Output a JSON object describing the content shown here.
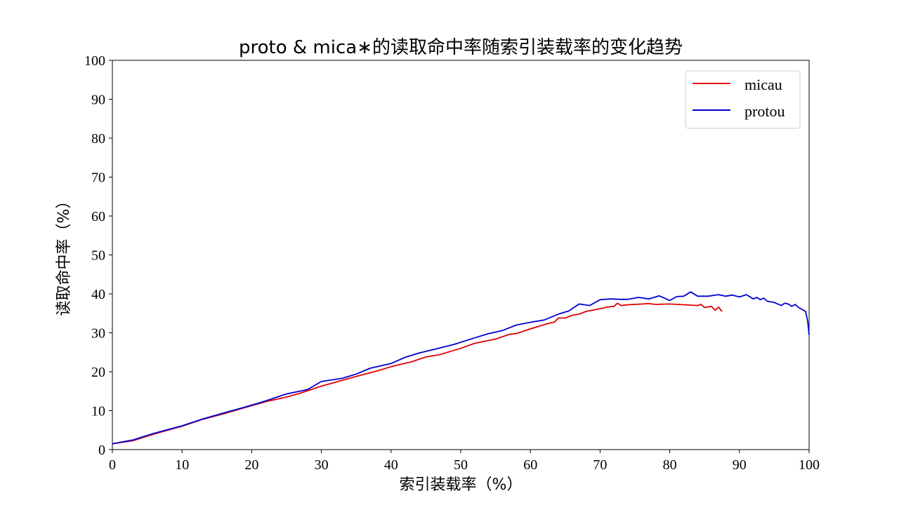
{
  "chart_data": {
    "type": "line",
    "title": "proto & mica∗的读取命中率随索引装载率的变化趋势",
    "xlabel": "索引装载率（%）",
    "ylabel": "读取命中率（%）",
    "xlim": [
      0,
      100
    ],
    "ylim": [
      0,
      100
    ],
    "xticks": [
      "0",
      "10",
      "20",
      "30",
      "40",
      "50",
      "60",
      "70",
      "80",
      "90",
      "100"
    ],
    "yticks": [
      "0",
      "10",
      "20",
      "30",
      "40",
      "50",
      "60",
      "70",
      "80",
      "90",
      "100"
    ],
    "grid": false,
    "legend_position": "top-right",
    "series": [
      {
        "name": "micau",
        "color": "#e00000",
        "points": [
          [
            0,
            1.5
          ],
          [
            3,
            2.3
          ],
          [
            6,
            4.0
          ],
          [
            10,
            6.0
          ],
          [
            13,
            7.8
          ],
          [
            16,
            9.2
          ],
          [
            19,
            10.8
          ],
          [
            22,
            12.3
          ],
          [
            25,
            13.5
          ],
          [
            27,
            14.5
          ],
          [
            30,
            16.3
          ],
          [
            32,
            17.3
          ],
          [
            35,
            18.8
          ],
          [
            38,
            20.2
          ],
          [
            40,
            21.3
          ],
          [
            43,
            22.6
          ],
          [
            45,
            23.8
          ],
          [
            47,
            24.4
          ],
          [
            50,
            26.0
          ],
          [
            52,
            27.3
          ],
          [
            55,
            28.4
          ],
          [
            57,
            29.6
          ],
          [
            58,
            29.8
          ],
          [
            60,
            31.0
          ],
          [
            62,
            32.1
          ],
          [
            63.5,
            32.8
          ],
          [
            64,
            33.8
          ],
          [
            65,
            33.8
          ],
          [
            66,
            34.5
          ],
          [
            67,
            34.8
          ],
          [
            68,
            35.5
          ],
          [
            70,
            36.2
          ],
          [
            71,
            36.6
          ],
          [
            72,
            36.8
          ],
          [
            72.5,
            37.6
          ],
          [
            73,
            37.0
          ],
          [
            74,
            37.2
          ],
          [
            75,
            37.3
          ],
          [
            77,
            37.5
          ],
          [
            78,
            37.3
          ],
          [
            80,
            37.4
          ],
          [
            82,
            37.2
          ],
          [
            84,
            37.0
          ],
          [
            84.5,
            37.3
          ],
          [
            85,
            36.5
          ],
          [
            86,
            36.8
          ],
          [
            86.5,
            35.8
          ],
          [
            87,
            36.6
          ],
          [
            87.5,
            35.5
          ]
        ]
      },
      {
        "name": "protou",
        "color": "#0000d0",
        "points": [
          [
            0,
            1.5
          ],
          [
            3,
            2.5
          ],
          [
            6,
            4.2
          ],
          [
            10,
            6.1
          ],
          [
            13,
            7.9
          ],
          [
            16,
            9.4
          ],
          [
            19,
            10.9
          ],
          [
            22,
            12.5
          ],
          [
            25,
            14.3
          ],
          [
            28,
            15.4
          ],
          [
            30,
            17.5
          ],
          [
            33,
            18.3
          ],
          [
            35,
            19.4
          ],
          [
            37,
            20.9
          ],
          [
            40,
            22.1
          ],
          [
            42,
            23.7
          ],
          [
            44,
            24.8
          ],
          [
            47,
            26.1
          ],
          [
            49,
            27.0
          ],
          [
            52,
            28.7
          ],
          [
            54,
            29.8
          ],
          [
            56,
            30.6
          ],
          [
            58,
            32.0
          ],
          [
            60,
            32.7
          ],
          [
            62,
            33.3
          ],
          [
            64,
            34.8
          ],
          [
            65.5,
            35.6
          ],
          [
            67,
            37.4
          ],
          [
            68.5,
            37.0
          ],
          [
            70,
            38.5
          ],
          [
            71.5,
            38.7
          ],
          [
            73,
            38.6
          ],
          [
            74,
            38.6
          ],
          [
            75.5,
            39.1
          ],
          [
            77,
            38.7
          ],
          [
            78.5,
            39.5
          ],
          [
            80,
            38.3
          ],
          [
            81,
            39.3
          ],
          [
            82,
            39.4
          ],
          [
            83,
            40.5
          ],
          [
            84,
            39.4
          ],
          [
            85.5,
            39.4
          ],
          [
            87,
            39.8
          ],
          [
            88,
            39.4
          ],
          [
            89,
            39.7
          ],
          [
            90,
            39.2
          ],
          [
            91,
            39.8
          ],
          [
            92,
            38.7
          ],
          [
            92.5,
            39.1
          ],
          [
            93,
            38.5
          ],
          [
            93.5,
            38.9
          ],
          [
            94,
            38.1
          ],
          [
            95,
            37.8
          ],
          [
            96,
            37.0
          ],
          [
            96.5,
            37.6
          ],
          [
            97,
            37.4
          ],
          [
            97.5,
            36.8
          ],
          [
            98,
            37.3
          ],
          [
            98.5,
            36.5
          ],
          [
            99,
            36.0
          ],
          [
            99.5,
            35.5
          ],
          [
            99.8,
            33.0
          ],
          [
            100,
            29.5
          ]
        ]
      }
    ]
  }
}
